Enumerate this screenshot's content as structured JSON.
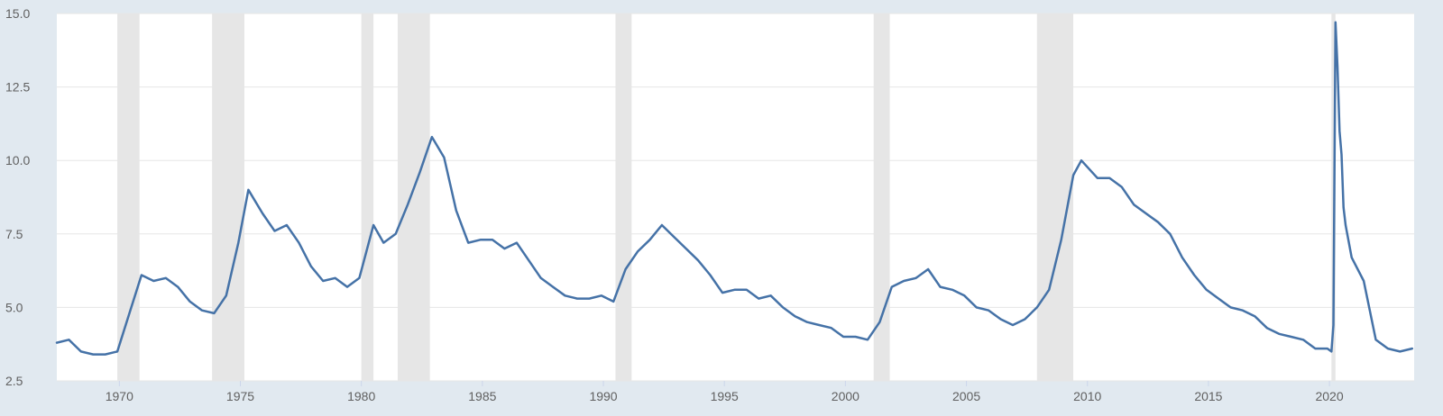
{
  "chart_data": {
    "type": "line",
    "title": "",
    "xlabel": "",
    "ylabel": "",
    "xlim": [
      "1967-06",
      "2023-07"
    ],
    "ylim": [
      2.5,
      15.0
    ],
    "y_ticks": [
      2.5,
      5.0,
      7.5,
      10.0,
      12.5,
      15.0
    ],
    "y_tick_labels": [
      "2.5",
      "5.0",
      "7.5",
      "10.0",
      "12.5",
      "15.0"
    ],
    "x_ticks": [
      1970,
      1975,
      1980,
      1985,
      1990,
      1995,
      2000,
      2005,
      2010,
      2015,
      2020
    ],
    "x_tick_labels": [
      "1970",
      "1975",
      "1980",
      "1985",
      "1990",
      "1995",
      "2000",
      "2005",
      "2010",
      "2015",
      "2020"
    ],
    "grid": "horizontal",
    "legend": "none",
    "line_color": "#4572a7",
    "plot_background": "#ffffff",
    "page_background": "#e1e9f0",
    "recession_color": "#e6e6e6",
    "recessions": [
      [
        "1969-12",
        "1970-11"
      ],
      [
        "1973-11",
        "1975-03"
      ],
      [
        "1980-01",
        "1980-07"
      ],
      [
        "1981-07",
        "1982-11"
      ],
      [
        "1990-07",
        "1991-03"
      ],
      [
        "2001-03",
        "2001-11"
      ],
      [
        "2007-12",
        "2009-06"
      ],
      [
        "2020-02",
        "2020-04"
      ]
    ],
    "series": [
      {
        "x": [
          "1967-06",
          "1967-12",
          "1968-06",
          "1968-12",
          "1969-06",
          "1969-12",
          "1970-06",
          "1970-12",
          "1971-06",
          "1971-12",
          "1972-06",
          "1972-12",
          "1973-06",
          "1973-12",
          "1974-06",
          "1974-12",
          "1975-05",
          "1975-12",
          "1976-06",
          "1976-12",
          "1977-06",
          "1977-12",
          "1978-06",
          "1978-12",
          "1979-06",
          "1979-12",
          "1980-07",
          "1980-12",
          "1981-06",
          "1981-12",
          "1982-06",
          "1982-12",
          "1983-06",
          "1983-12",
          "1984-06",
          "1984-12",
          "1985-06",
          "1985-12",
          "1986-06",
          "1986-12",
          "1987-06",
          "1987-12",
          "1988-06",
          "1988-12",
          "1989-06",
          "1989-12",
          "1990-06",
          "1990-12",
          "1991-06",
          "1991-12",
          "1992-06",
          "1992-12",
          "1993-06",
          "1993-12",
          "1994-06",
          "1994-12",
          "1995-06",
          "1995-12",
          "1996-06",
          "1996-12",
          "1997-06",
          "1997-12",
          "1998-06",
          "1998-12",
          "1999-06",
          "1999-12",
          "2000-06",
          "2000-12",
          "2001-06",
          "2001-12",
          "2002-06",
          "2002-12",
          "2003-06",
          "2003-12",
          "2004-06",
          "2004-12",
          "2005-06",
          "2005-12",
          "2006-06",
          "2006-12",
          "2007-06",
          "2007-12",
          "2008-06",
          "2008-12",
          "2009-06",
          "2009-10",
          "2010-06",
          "2010-12",
          "2011-06",
          "2011-12",
          "2012-06",
          "2012-12",
          "2013-06",
          "2013-12",
          "2014-06",
          "2014-12",
          "2015-06",
          "2015-12",
          "2016-06",
          "2016-12",
          "2017-06",
          "2017-12",
          "2018-06",
          "2018-12",
          "2019-06",
          "2019-12",
          "2020-02",
          "2020-03",
          "2020-04",
          "2020-05",
          "2020-06",
          "2020-07",
          "2020-08",
          "2020-09",
          "2020-12",
          "2021-06",
          "2021-12",
          "2022-06",
          "2022-12",
          "2023-06"
        ],
        "y": [
          3.8,
          3.9,
          3.5,
          3.4,
          3.4,
          3.5,
          4.8,
          6.1,
          5.9,
          6.0,
          5.7,
          5.2,
          4.9,
          4.8,
          5.4,
          7.2,
          9.0,
          8.2,
          7.6,
          7.8,
          7.2,
          6.4,
          5.9,
          6.0,
          5.7,
          6.0,
          7.8,
          7.2,
          7.5,
          8.5,
          9.6,
          10.8,
          10.1,
          8.3,
          7.2,
          7.3,
          7.3,
          7.0,
          7.2,
          6.6,
          6.0,
          5.7,
          5.4,
          5.3,
          5.3,
          5.4,
          5.2,
          6.3,
          6.9,
          7.3,
          7.8,
          7.4,
          7.0,
          6.6,
          6.1,
          5.5,
          5.6,
          5.6,
          5.3,
          5.4,
          5.0,
          4.7,
          4.5,
          4.4,
          4.3,
          4.0,
          4.0,
          3.9,
          4.5,
          5.7,
          5.9,
          6.0,
          6.3,
          5.7,
          5.6,
          5.4,
          5.0,
          4.9,
          4.6,
          4.4,
          4.6,
          5.0,
          5.6,
          7.3,
          9.5,
          10.0,
          9.4,
          9.4,
          9.1,
          8.5,
          8.2,
          7.9,
          7.5,
          6.7,
          6.1,
          5.6,
          5.3,
          5.0,
          4.9,
          4.7,
          4.3,
          4.1,
          4.0,
          3.9,
          3.6,
          3.6,
          3.5,
          4.4,
          14.7,
          13.2,
          11.0,
          10.2,
          8.4,
          7.8,
          6.7,
          5.9,
          3.9,
          3.6,
          3.5,
          3.6
        ]
      }
    ]
  }
}
